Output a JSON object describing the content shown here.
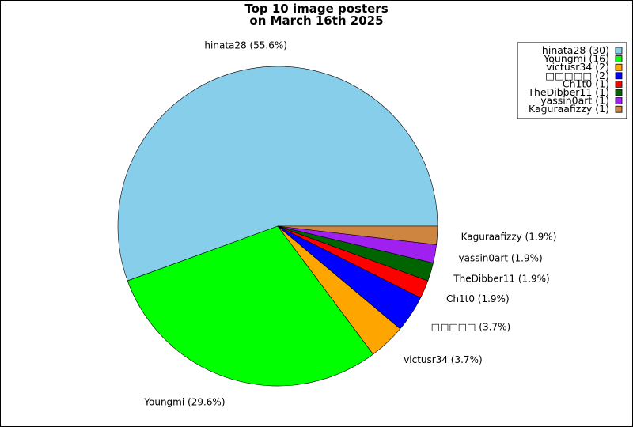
{
  "chart_data": {
    "type": "pie",
    "title": "Top 10 image posters",
    "subtitle": "on March 16th 2025",
    "legend_position": "top-right",
    "slices": [
      {
        "name": "hinata28",
        "value": 30,
        "percent_label": "hinata28 (55.6%)",
        "legend_label": "hinata28 (30)",
        "color": "#87ceeb"
      },
      {
        "name": "Youngmi",
        "value": 16,
        "percent_label": "Youngmi (29.6%)",
        "legend_label": "Youngmi (16)",
        "color": "#00ff00"
      },
      {
        "name": "victusr34",
        "value": 2,
        "percent_label": "victusr34 (3.7%)",
        "legend_label": "victusr34 (2)",
        "color": "#ffa500"
      },
      {
        "name": "□□□□□",
        "value": 2,
        "percent_label": "□□□□□ (3.7%)",
        "legend_label": "□□□□□ (2)",
        "color": "#0000ff"
      },
      {
        "name": "Ch1t0",
        "value": 1,
        "percent_label": "Ch1t0 (1.9%)",
        "legend_label": "Ch1t0 (1)",
        "color": "#ff0000"
      },
      {
        "name": "TheDibber11",
        "value": 1,
        "percent_label": "TheDibber11 (1.9%)",
        "legend_label": "TheDibber11 (1)",
        "color": "#006400"
      },
      {
        "name": "yassin0art",
        "value": 1,
        "percent_label": "yassin0art (1.9%)",
        "legend_label": "yassin0art (1)",
        "color": "#a020f0"
      },
      {
        "name": "Kaguraafizzy",
        "value": 1,
        "percent_label": "Kaguraafizzy (1.9%)",
        "legend_label": "Kaguraafizzy (1)",
        "color": "#cd853f"
      }
    ]
  }
}
